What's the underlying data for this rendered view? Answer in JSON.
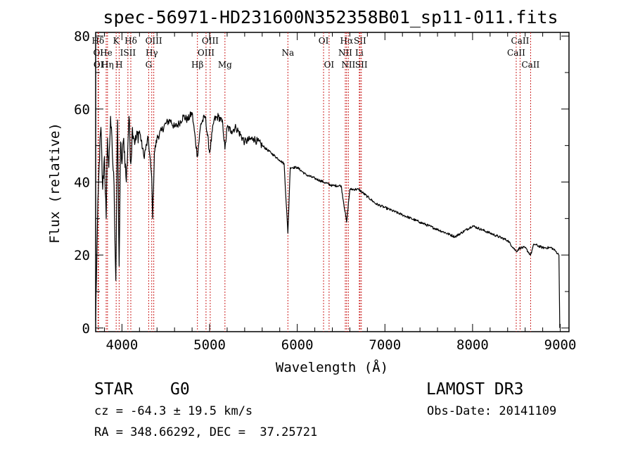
{
  "chart_data": {
    "type": "line",
    "title": "spec-56971-HD231600N352358B01_sp11-011.fits",
    "xlabel": "Wavelength (Å)",
    "ylabel": "Flux (relative)",
    "xlim": [
      3700,
      9100
    ],
    "ylim": [
      -1,
      81
    ],
    "xticks": [
      4000,
      5000,
      6000,
      7000,
      8000,
      9000
    ],
    "yticks": [
      0,
      20,
      40,
      60,
      80
    ],
    "series": [
      {
        "name": "flux",
        "x": [
          3700,
          3720,
          3740,
          3760,
          3780,
          3800,
          3820,
          3835,
          3850,
          3870,
          3890,
          3910,
          3930,
          3950,
          3968,
          3985,
          4000,
          4020,
          4050,
          4080,
          4101,
          4120,
          4150,
          4200,
          4250,
          4300,
          4340,
          4350,
          4370,
          4400,
          4450,
          4500,
          4550,
          4600,
          4650,
          4700,
          4750,
          4800,
          4861,
          4900,
          4950,
          5000,
          5050,
          5100,
          5150,
          5175,
          5200,
          5250,
          5300,
          5400,
          5500,
          5600,
          5700,
          5800,
          5850,
          5893,
          5920,
          6000,
          6100,
          6200,
          6300,
          6400,
          6500,
          6563,
          6600,
          6700,
          6800,
          6900,
          7000,
          7200,
          7400,
          7600,
          7800,
          8000,
          8200,
          8400,
          8498,
          8542,
          8600,
          8662,
          8700,
          8800,
          8900,
          8950,
          8985,
          8995
        ],
        "values": [
          2,
          28,
          45,
          55,
          38,
          47,
          30,
          52,
          44,
          58,
          48,
          39,
          13,
          57,
          17,
          51,
          45,
          52,
          40,
          58,
          45,
          55,
          51,
          54,
          47,
          52,
          41,
          30,
          48,
          52,
          54,
          56,
          57,
          55,
          56,
          58,
          57,
          59,
          47,
          56,
          58,
          48,
          57,
          58,
          56,
          49,
          55,
          54,
          55,
          51,
          52,
          50,
          48,
          46,
          45,
          26,
          44,
          44,
          42,
          41,
          40,
          39,
          39,
          29,
          38,
          38,
          36,
          34,
          33,
          31,
          29,
          27,
          25,
          28,
          26,
          24,
          21,
          22,
          22,
          20,
          23,
          22,
          22,
          21,
          20,
          0
        ]
      }
    ],
    "spectral_lines": [
      {
        "name": "Hδ",
        "wave": 3727,
        "row": 1
      },
      {
        "name": "OI",
        "wave": 3730,
        "row": 2
      },
      {
        "name": "OI",
        "wave": 3733,
        "row": 3
      },
      {
        "name": "K",
        "wave": 3934,
        "row": 1
      },
      {
        "name": "He",
        "wave": 3820,
        "row": 2
      },
      {
        "name": "Hη",
        "wave": 3835,
        "row": 3
      },
      {
        "name": "Hδ",
        "wave": 4101,
        "row": 1
      },
      {
        "name": "ISII",
        "wave": 4068,
        "row": 2
      },
      {
        "name": "H",
        "wave": 3968,
        "row": 3
      },
      {
        "name": "OIII",
        "wave": 4363,
        "row": 1
      },
      {
        "name": "Hγ",
        "wave": 4340,
        "row": 2
      },
      {
        "name": "G",
        "wave": 4305,
        "row": 3
      },
      {
        "name": "OIII",
        "wave": 5007,
        "row": 1
      },
      {
        "name": "OIII",
        "wave": 4959,
        "row": 2
      },
      {
        "name": "Hβ",
        "wave": 4861,
        "row": 3
      },
      {
        "name": "Mg",
        "wave": 5175,
        "row": 3
      },
      {
        "name": "Na",
        "wave": 5893,
        "row": 2
      },
      {
        "name": "OI",
        "wave": 6300,
        "row": 1
      },
      {
        "name": "OI",
        "wave": 6363,
        "row": 3
      },
      {
        "name": "Hα",
        "wave": 6563,
        "row": 1
      },
      {
        "name": "SII",
        "wave": 6716,
        "row": 1
      },
      {
        "name": "NII",
        "wave": 6548,
        "row": 2
      },
      {
        "name": "Li",
        "wave": 6708,
        "row": 2
      },
      {
        "name": "NII",
        "wave": 6583,
        "row": 3
      },
      {
        "name": "SII",
        "wave": 6731,
        "row": 3
      },
      {
        "name": "CaII",
        "wave": 8542,
        "row": 1
      },
      {
        "name": "CaII",
        "wave": 8498,
        "row": 2
      },
      {
        "name": "CaII",
        "wave": 8662,
        "row": 3
      }
    ],
    "line_color": "#cc2222"
  },
  "info": {
    "class_label": "STAR",
    "subclass": "G0",
    "survey": "LAMOST DR3",
    "cz_line": "cz = -64.3 ± 19.5 km/s",
    "obs_date_line": "Obs-Date: 20141109",
    "radec_line": "RA = 348.66292, DEC =  37.25721"
  }
}
